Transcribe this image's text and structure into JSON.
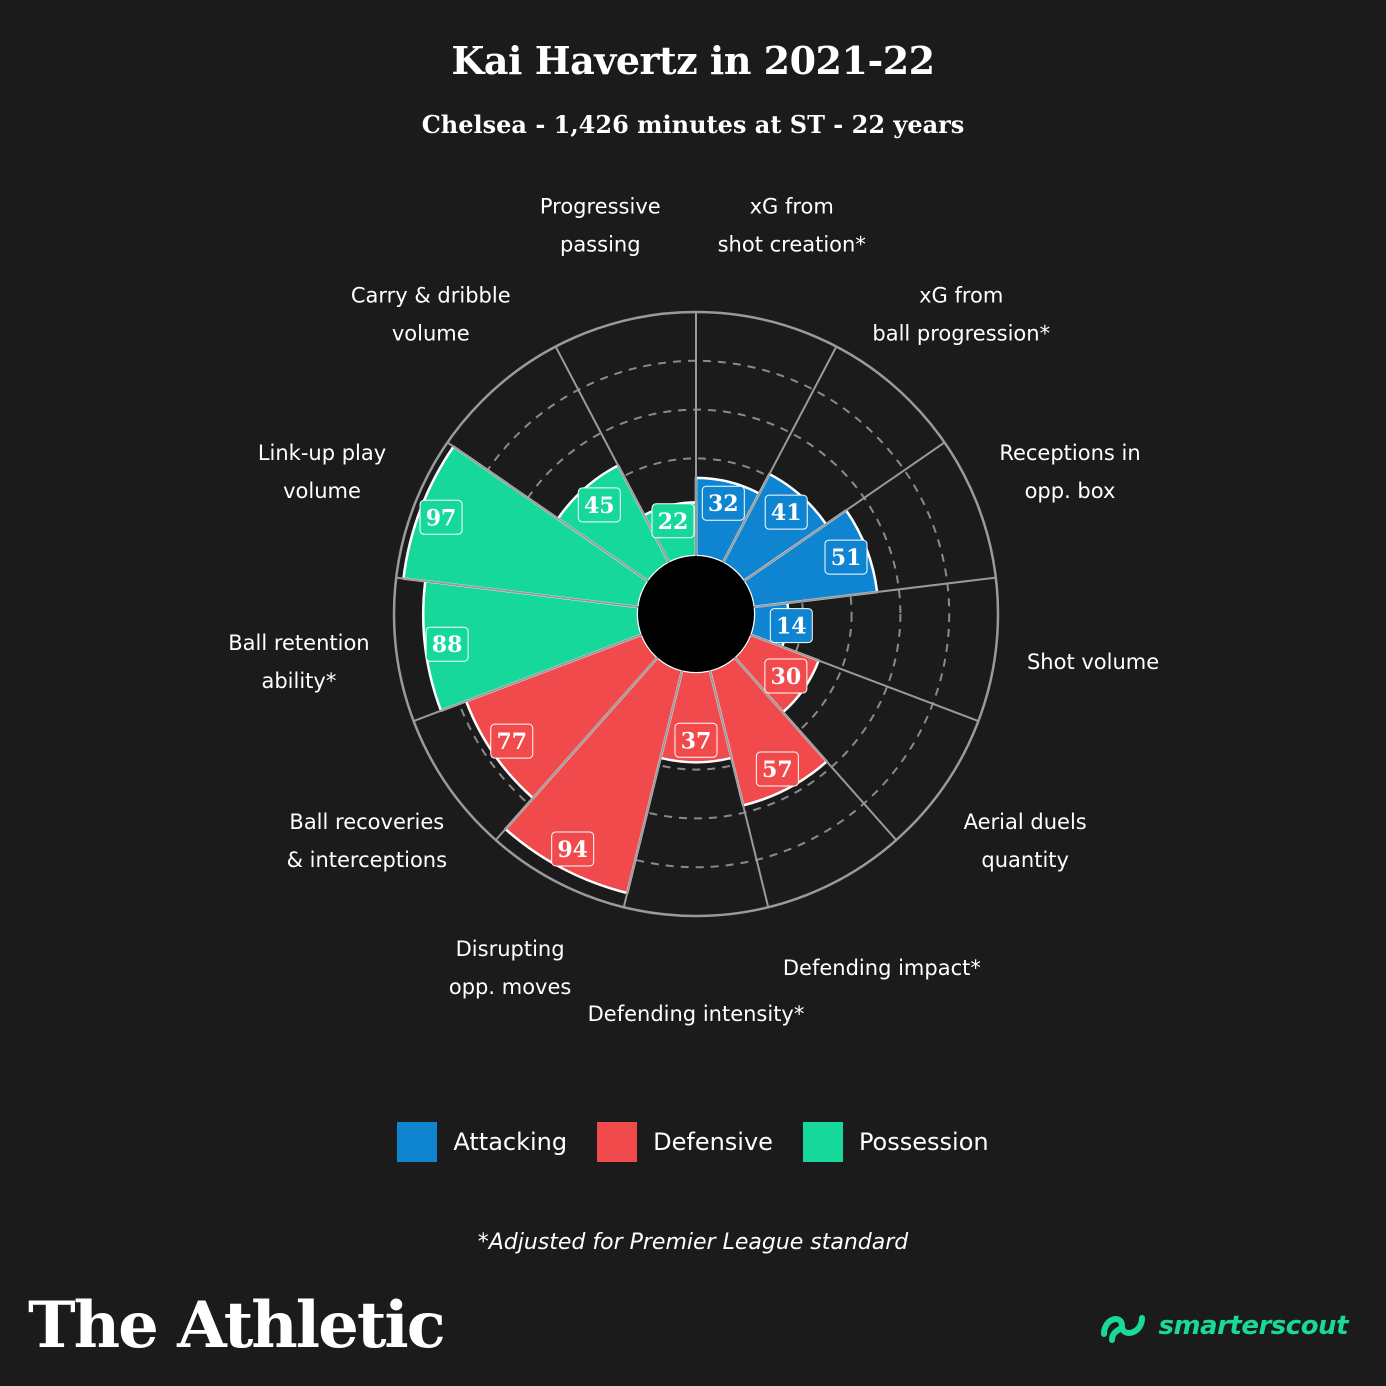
{
  "header": {
    "title": "Kai Havertz in 2021-22",
    "subtitle": "Chelsea - 1,426 minutes at ST - 22 years"
  },
  "colors": {
    "Attacking": "#0f84d1",
    "Defensive": "#f14a4c",
    "Possession": "#17d89b",
    "background": "#1b1b1b",
    "grid": "#8a8a8a"
  },
  "legend": [
    {
      "label": "Attacking",
      "color": "#0f84d1"
    },
    {
      "label": "Defensive",
      "color": "#f14a4c"
    },
    {
      "label": "Possession",
      "color": "#17d89b"
    }
  ],
  "chart_data": {
    "type": "polar-bar",
    "title": "Kai Havertz in 2021-22",
    "subtitle": "Chelsea - 1,426 minutes at ST - 22 years",
    "rlim": [
      0,
      100
    ],
    "grid_rings": [
      20,
      40,
      60,
      80
    ],
    "categories": [
      {
        "label": "xG from\nshot creation*",
        "value": 32,
        "group": "Attacking"
      },
      {
        "label": "xG from\nball progression*",
        "value": 41,
        "group": "Attacking"
      },
      {
        "label": "Receptions in\nopp. box",
        "value": 51,
        "group": "Attacking"
      },
      {
        "label": "Shot volume",
        "value": 14,
        "group": "Attacking"
      },
      {
        "label": "Aerial duels\nquantity",
        "value": 30,
        "group": "Defensive"
      },
      {
        "label": "Defending impact*",
        "value": 57,
        "group": "Defensive"
      },
      {
        "label": "Defending intensity*",
        "value": 37,
        "group": "Defensive"
      },
      {
        "label": "Disrupting\nopp. moves",
        "value": 94,
        "group": "Defensive"
      },
      {
        "label": "Ball recoveries\n& interceptions",
        "value": 77,
        "group": "Defensive"
      },
      {
        "label": "Ball retention\nability*",
        "value": 88,
        "group": "Possession"
      },
      {
        "label": "Link-up play\nvolume",
        "value": 97,
        "group": "Possession"
      },
      {
        "label": "Carry & dribble\nvolume",
        "value": 45,
        "group": "Possession"
      },
      {
        "label": "Progressive\npassing",
        "value": 22,
        "group": "Possession"
      }
    ]
  },
  "footnote": "*Adjusted for Premier League standard",
  "brand": {
    "publisher": "The Athletic",
    "partner": "smarterscout"
  }
}
